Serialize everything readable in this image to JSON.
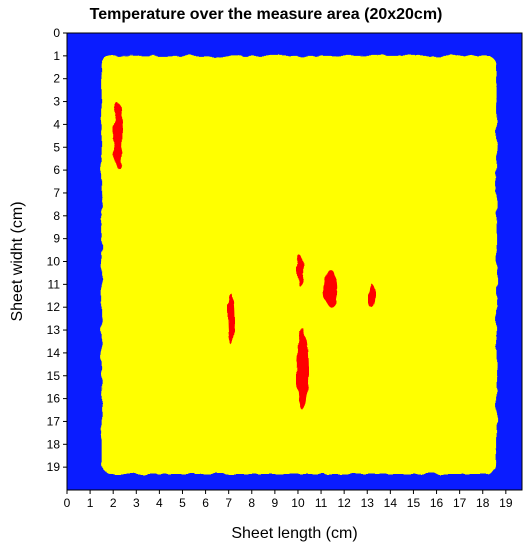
{
  "chart_data": {
    "type": "heatmap",
    "title": "Temperature over the measure area (20x20cm)",
    "xlabel": "Sheet length (cm)",
    "ylabel": "Sheet widht (cm)",
    "xlim": [
      0,
      19.7
    ],
    "ylim": [
      0,
      20
    ],
    "x_ticks": [
      "0",
      "1",
      "2",
      "3",
      "4",
      "5",
      "6",
      "7",
      "8",
      "9",
      "10",
      "11",
      "12",
      "13",
      "14",
      "15",
      "16",
      "17",
      "18",
      "19"
    ],
    "y_ticks": [
      "0",
      "1",
      "2",
      "3",
      "4",
      "5",
      "6",
      "7",
      "8",
      "9",
      "10",
      "11",
      "12",
      "13",
      "14",
      "15",
      "16",
      "17",
      "18",
      "19"
    ],
    "y_axis_inverted": true,
    "grid": false,
    "legend": "none",
    "colors": {
      "background": "#0a1cff",
      "warm": "#ffff00",
      "hot": "#ff0000"
    },
    "warm_region": {
      "x_range": [
        1.5,
        18.6
      ],
      "y_range": [
        1.0,
        19.3
      ]
    },
    "hot_spots": [
      {
        "x": 7.1,
        "y": 12.5,
        "width": 0.3,
        "height": 2.2
      },
      {
        "x": 10.2,
        "y": 14.7,
        "width": 0.5,
        "height": 3.6
      },
      {
        "x": 10.1,
        "y": 10.4,
        "width": 0.3,
        "height": 1.4
      },
      {
        "x": 11.4,
        "y": 11.2,
        "width": 0.6,
        "height": 1.6
      },
      {
        "x": 13.2,
        "y": 11.5,
        "width": 0.3,
        "height": 1.0
      },
      {
        "x": 2.2,
        "y": 4.5,
        "width": 0.4,
        "height": 3.0
      }
    ]
  }
}
